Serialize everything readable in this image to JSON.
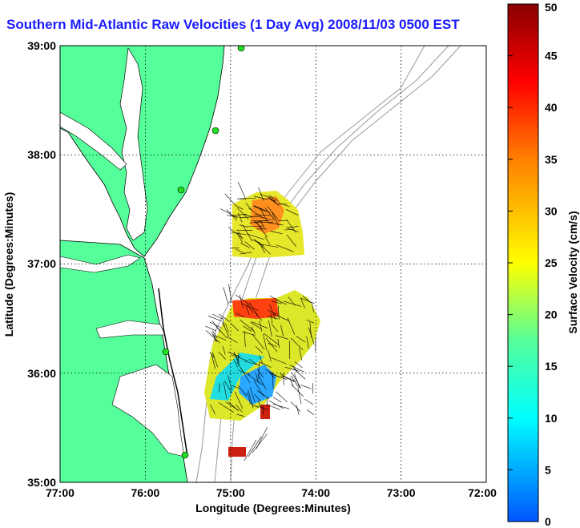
{
  "title": "Southern Mid-Atlantic Raw Velocities (1 Day Avg) 2008/11/03 0500 EST",
  "map": {
    "xlabel": "Longitude (Degrees:Minutes)",
    "ylabel": "Latitude (Degrees:Minutes)",
    "x_ticks": [
      "77:00",
      "76:00",
      "75:00",
      "74:00",
      "73:00",
      "72:00"
    ],
    "y_ticks": [
      "39:00",
      "38:00",
      "37:00",
      "36:00",
      "35:00"
    ],
    "lon_range": [
      -77,
      -72
    ],
    "lat_range": [
      35,
      39
    ],
    "land_color": "#55ff99",
    "coast_color": "#000000",
    "bathymetry_color": "#999999",
    "grid": "dotted",
    "station_color": "#22dd22"
  },
  "colorbar": {
    "label": "Surface Velocity (cm/s)",
    "ticks": [
      "0",
      "5",
      "10",
      "15",
      "20",
      "25",
      "30",
      "35",
      "40",
      "45",
      "50"
    ],
    "min": 0,
    "max": 50,
    "colors": [
      "#0055ff",
      "#00ffff",
      "#55ff99",
      "#ffff00",
      "#ff8000",
      "#ff0000",
      "#880000"
    ]
  }
}
